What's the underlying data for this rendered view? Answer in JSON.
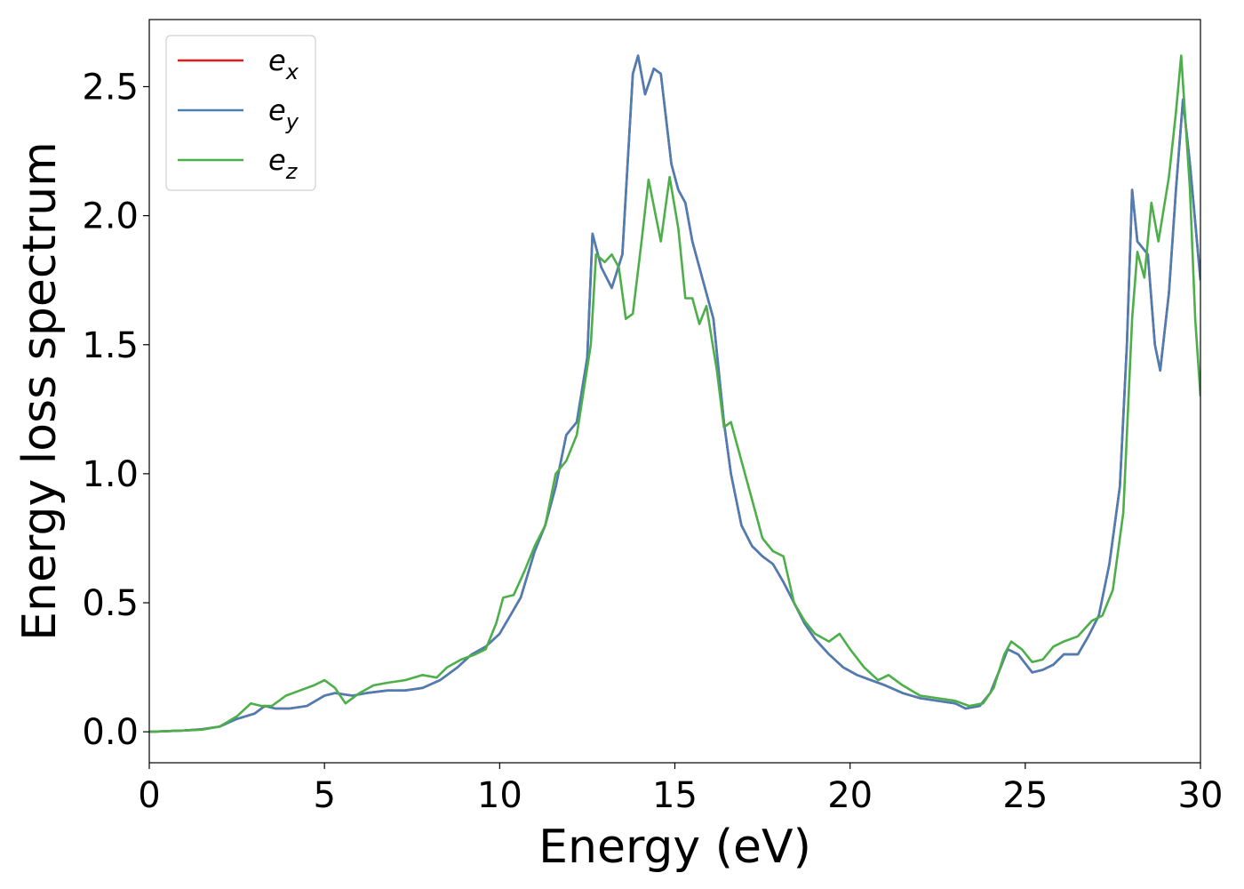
{
  "chart_data": {
    "type": "line",
    "xlabel": "Energy (eV)",
    "ylabel": "Energy loss spectrum",
    "xlim": [
      0,
      30
    ],
    "ylim": [
      -0.12,
      2.76
    ],
    "x_ticks": [
      0,
      5,
      10,
      15,
      20,
      25,
      30
    ],
    "x_tick_labels": [
      "0",
      "5",
      "10",
      "15",
      "20",
      "25",
      "30"
    ],
    "y_ticks": [
      0.0,
      0.5,
      1.0,
      1.5,
      2.0,
      2.5
    ],
    "y_tick_labels": [
      "0.0",
      "0.5",
      "1.0",
      "1.5",
      "2.0",
      "2.5"
    ],
    "grid": false,
    "legend_position": "top-left",
    "series": [
      {
        "name": "e_x",
        "legend_base": "e",
        "legend_sub": "x",
        "color": "#e41a1c",
        "points": [
          [
            0,
            0
          ],
          [
            1,
            0.005
          ],
          [
            1.5,
            0.01
          ],
          [
            2,
            0.02
          ],
          [
            2.5,
            0.05
          ],
          [
            3,
            0.07
          ],
          [
            3.3,
            0.1
          ],
          [
            3.6,
            0.09
          ],
          [
            4,
            0.09
          ],
          [
            4.5,
            0.1
          ],
          [
            5,
            0.14
          ],
          [
            5.3,
            0.15
          ],
          [
            5.8,
            0.14
          ],
          [
            6.2,
            0.15
          ],
          [
            6.8,
            0.16
          ],
          [
            7.3,
            0.16
          ],
          [
            7.8,
            0.17
          ],
          [
            8.3,
            0.2
          ],
          [
            8.8,
            0.25
          ],
          [
            9.2,
            0.3
          ],
          [
            9.6,
            0.33
          ],
          [
            10,
            0.38
          ],
          [
            10.3,
            0.45
          ],
          [
            10.6,
            0.52
          ],
          [
            11,
            0.7
          ],
          [
            11.3,
            0.8
          ],
          [
            11.6,
            0.95
          ],
          [
            11.9,
            1.15
          ],
          [
            12.2,
            1.2
          ],
          [
            12.5,
            1.45
          ],
          [
            12.65,
            1.93
          ],
          [
            12.9,
            1.8
          ],
          [
            13.2,
            1.72
          ],
          [
            13.5,
            1.85
          ],
          [
            13.8,
            2.55
          ],
          [
            13.95,
            2.62
          ],
          [
            14.15,
            2.47
          ],
          [
            14.4,
            2.57
          ],
          [
            14.6,
            2.55
          ],
          [
            14.9,
            2.2
          ],
          [
            15.1,
            2.1
          ],
          [
            15.3,
            2.05
          ],
          [
            15.5,
            1.9
          ],
          [
            15.8,
            1.75
          ],
          [
            16.1,
            1.6
          ],
          [
            16.4,
            1.2
          ],
          [
            16.6,
            1.0
          ],
          [
            16.9,
            0.8
          ],
          [
            17.2,
            0.72
          ],
          [
            17.5,
            0.68
          ],
          [
            17.8,
            0.65
          ],
          [
            18.1,
            0.58
          ],
          [
            18.4,
            0.5
          ],
          [
            18.7,
            0.42
          ],
          [
            19,
            0.36
          ],
          [
            19.4,
            0.3
          ],
          [
            19.8,
            0.25
          ],
          [
            20.2,
            0.22
          ],
          [
            20.6,
            0.2
          ],
          [
            21,
            0.18
          ],
          [
            21.5,
            0.15
          ],
          [
            22,
            0.13
          ],
          [
            22.5,
            0.12
          ],
          [
            23,
            0.11
          ],
          [
            23.3,
            0.09
          ],
          [
            23.7,
            0.1
          ],
          [
            24,
            0.15
          ],
          [
            24.3,
            0.25
          ],
          [
            24.5,
            0.32
          ],
          [
            24.8,
            0.3
          ],
          [
            25.2,
            0.23
          ],
          [
            25.5,
            0.24
          ],
          [
            25.8,
            0.26
          ],
          [
            26.1,
            0.3
          ],
          [
            26.5,
            0.3
          ],
          [
            26.8,
            0.37
          ],
          [
            27.1,
            0.45
          ],
          [
            27.4,
            0.65
          ],
          [
            27.7,
            0.95
          ],
          [
            27.9,
            1.5
          ],
          [
            28.05,
            2.1
          ],
          [
            28.2,
            1.9
          ],
          [
            28.5,
            1.85
          ],
          [
            28.7,
            1.5
          ],
          [
            28.85,
            1.4
          ],
          [
            29.1,
            1.7
          ],
          [
            29.3,
            2.1
          ],
          [
            29.5,
            2.45
          ],
          [
            29.7,
            2.2
          ],
          [
            30,
            1.75
          ]
        ]
      },
      {
        "name": "e_y",
        "legend_base": "e",
        "legend_sub": "y",
        "color": "#4a7eb5",
        "points": [
          [
            0,
            0
          ],
          [
            1,
            0.005
          ],
          [
            1.5,
            0.01
          ],
          [
            2,
            0.02
          ],
          [
            2.5,
            0.05
          ],
          [
            3,
            0.07
          ],
          [
            3.3,
            0.1
          ],
          [
            3.6,
            0.09
          ],
          [
            4,
            0.09
          ],
          [
            4.5,
            0.1
          ],
          [
            5,
            0.14
          ],
          [
            5.3,
            0.15
          ],
          [
            5.8,
            0.14
          ],
          [
            6.2,
            0.15
          ],
          [
            6.8,
            0.16
          ],
          [
            7.3,
            0.16
          ],
          [
            7.8,
            0.17
          ],
          [
            8.3,
            0.2
          ],
          [
            8.8,
            0.25
          ],
          [
            9.2,
            0.3
          ],
          [
            9.6,
            0.33
          ],
          [
            10,
            0.38
          ],
          [
            10.3,
            0.45
          ],
          [
            10.6,
            0.52
          ],
          [
            11,
            0.7
          ],
          [
            11.3,
            0.8
          ],
          [
            11.6,
            0.95
          ],
          [
            11.9,
            1.15
          ],
          [
            12.2,
            1.2
          ],
          [
            12.5,
            1.45
          ],
          [
            12.65,
            1.93
          ],
          [
            12.9,
            1.8
          ],
          [
            13.2,
            1.72
          ],
          [
            13.5,
            1.85
          ],
          [
            13.8,
            2.55
          ],
          [
            13.95,
            2.62
          ],
          [
            14.15,
            2.47
          ],
          [
            14.4,
            2.57
          ],
          [
            14.6,
            2.55
          ],
          [
            14.9,
            2.2
          ],
          [
            15.1,
            2.1
          ],
          [
            15.3,
            2.05
          ],
          [
            15.5,
            1.9
          ],
          [
            15.8,
            1.75
          ],
          [
            16.1,
            1.6
          ],
          [
            16.4,
            1.2
          ],
          [
            16.6,
            1.0
          ],
          [
            16.9,
            0.8
          ],
          [
            17.2,
            0.72
          ],
          [
            17.5,
            0.68
          ],
          [
            17.8,
            0.65
          ],
          [
            18.1,
            0.58
          ],
          [
            18.4,
            0.5
          ],
          [
            18.7,
            0.42
          ],
          [
            19,
            0.36
          ],
          [
            19.4,
            0.3
          ],
          [
            19.8,
            0.25
          ],
          [
            20.2,
            0.22
          ],
          [
            20.6,
            0.2
          ],
          [
            21,
            0.18
          ],
          [
            21.5,
            0.15
          ],
          [
            22,
            0.13
          ],
          [
            22.5,
            0.12
          ],
          [
            23,
            0.11
          ],
          [
            23.3,
            0.09
          ],
          [
            23.7,
            0.1
          ],
          [
            24,
            0.15
          ],
          [
            24.3,
            0.25
          ],
          [
            24.5,
            0.32
          ],
          [
            24.8,
            0.3
          ],
          [
            25.2,
            0.23
          ],
          [
            25.5,
            0.24
          ],
          [
            25.8,
            0.26
          ],
          [
            26.1,
            0.3
          ],
          [
            26.5,
            0.3
          ],
          [
            26.8,
            0.37
          ],
          [
            27.1,
            0.45
          ],
          [
            27.4,
            0.65
          ],
          [
            27.7,
            0.95
          ],
          [
            27.9,
            1.5
          ],
          [
            28.05,
            2.1
          ],
          [
            28.2,
            1.9
          ],
          [
            28.5,
            1.85
          ],
          [
            28.7,
            1.5
          ],
          [
            28.85,
            1.4
          ],
          [
            29.1,
            1.7
          ],
          [
            29.3,
            2.1
          ],
          [
            29.5,
            2.45
          ],
          [
            29.7,
            2.2
          ],
          [
            30,
            1.75
          ]
        ]
      },
      {
        "name": "e_z",
        "legend_base": "e",
        "legend_sub": "z",
        "color": "#4daf4a",
        "points": [
          [
            0,
            0
          ],
          [
            1,
            0.005
          ],
          [
            1.5,
            0.008
          ],
          [
            2,
            0.02
          ],
          [
            2.5,
            0.06
          ],
          [
            2.9,
            0.11
          ],
          [
            3.2,
            0.1
          ],
          [
            3.5,
            0.1
          ],
          [
            3.9,
            0.14
          ],
          [
            4.3,
            0.16
          ],
          [
            4.7,
            0.18
          ],
          [
            5,
            0.2
          ],
          [
            5.3,
            0.17
          ],
          [
            5.6,
            0.11
          ],
          [
            6,
            0.15
          ],
          [
            6.4,
            0.18
          ],
          [
            6.8,
            0.19
          ],
          [
            7.3,
            0.2
          ],
          [
            7.8,
            0.22
          ],
          [
            8.2,
            0.21
          ],
          [
            8.5,
            0.25
          ],
          [
            8.9,
            0.28
          ],
          [
            9.3,
            0.3
          ],
          [
            9.6,
            0.32
          ],
          [
            9.9,
            0.42
          ],
          [
            10.1,
            0.52
          ],
          [
            10.4,
            0.53
          ],
          [
            10.7,
            0.62
          ],
          [
            11,
            0.72
          ],
          [
            11.3,
            0.8
          ],
          [
            11.6,
            1.0
          ],
          [
            11.9,
            1.05
          ],
          [
            12.2,
            1.15
          ],
          [
            12.6,
            1.5
          ],
          [
            12.75,
            1.85
          ],
          [
            13,
            1.82
          ],
          [
            13.2,
            1.85
          ],
          [
            13.4,
            1.8
          ],
          [
            13.6,
            1.6
          ],
          [
            13.8,
            1.62
          ],
          [
            14.05,
            1.9
          ],
          [
            14.25,
            2.14
          ],
          [
            14.6,
            1.9
          ],
          [
            14.85,
            2.15
          ],
          [
            15.1,
            1.95
          ],
          [
            15.3,
            1.68
          ],
          [
            15.5,
            1.68
          ],
          [
            15.7,
            1.58
          ],
          [
            15.9,
            1.65
          ],
          [
            16.2,
            1.4
          ],
          [
            16.4,
            1.18
          ],
          [
            16.6,
            1.2
          ],
          [
            16.9,
            1.05
          ],
          [
            17.2,
            0.9
          ],
          [
            17.5,
            0.75
          ],
          [
            17.8,
            0.7
          ],
          [
            18.1,
            0.68
          ],
          [
            18.4,
            0.5
          ],
          [
            18.7,
            0.43
          ],
          [
            19,
            0.38
          ],
          [
            19.4,
            0.35
          ],
          [
            19.7,
            0.38
          ],
          [
            20,
            0.32
          ],
          [
            20.4,
            0.25
          ],
          [
            20.8,
            0.2
          ],
          [
            21.1,
            0.22
          ],
          [
            21.5,
            0.18
          ],
          [
            22,
            0.14
          ],
          [
            22.5,
            0.13
          ],
          [
            23,
            0.12
          ],
          [
            23.4,
            0.1
          ],
          [
            23.8,
            0.11
          ],
          [
            24.1,
            0.17
          ],
          [
            24.4,
            0.3
          ],
          [
            24.6,
            0.35
          ],
          [
            24.9,
            0.32
          ],
          [
            25.2,
            0.27
          ],
          [
            25.5,
            0.28
          ],
          [
            25.8,
            0.33
          ],
          [
            26.1,
            0.35
          ],
          [
            26.5,
            0.37
          ],
          [
            26.9,
            0.43
          ],
          [
            27.2,
            0.45
          ],
          [
            27.5,
            0.55
          ],
          [
            27.8,
            0.85
          ],
          [
            28.05,
            1.6
          ],
          [
            28.2,
            1.86
          ],
          [
            28.4,
            1.76
          ],
          [
            28.6,
            2.05
          ],
          [
            28.8,
            1.9
          ],
          [
            29.1,
            2.15
          ],
          [
            29.3,
            2.4
          ],
          [
            29.45,
            2.62
          ],
          [
            29.7,
            2.1
          ],
          [
            29.85,
            1.6
          ],
          [
            30,
            1.3
          ]
        ]
      }
    ]
  }
}
